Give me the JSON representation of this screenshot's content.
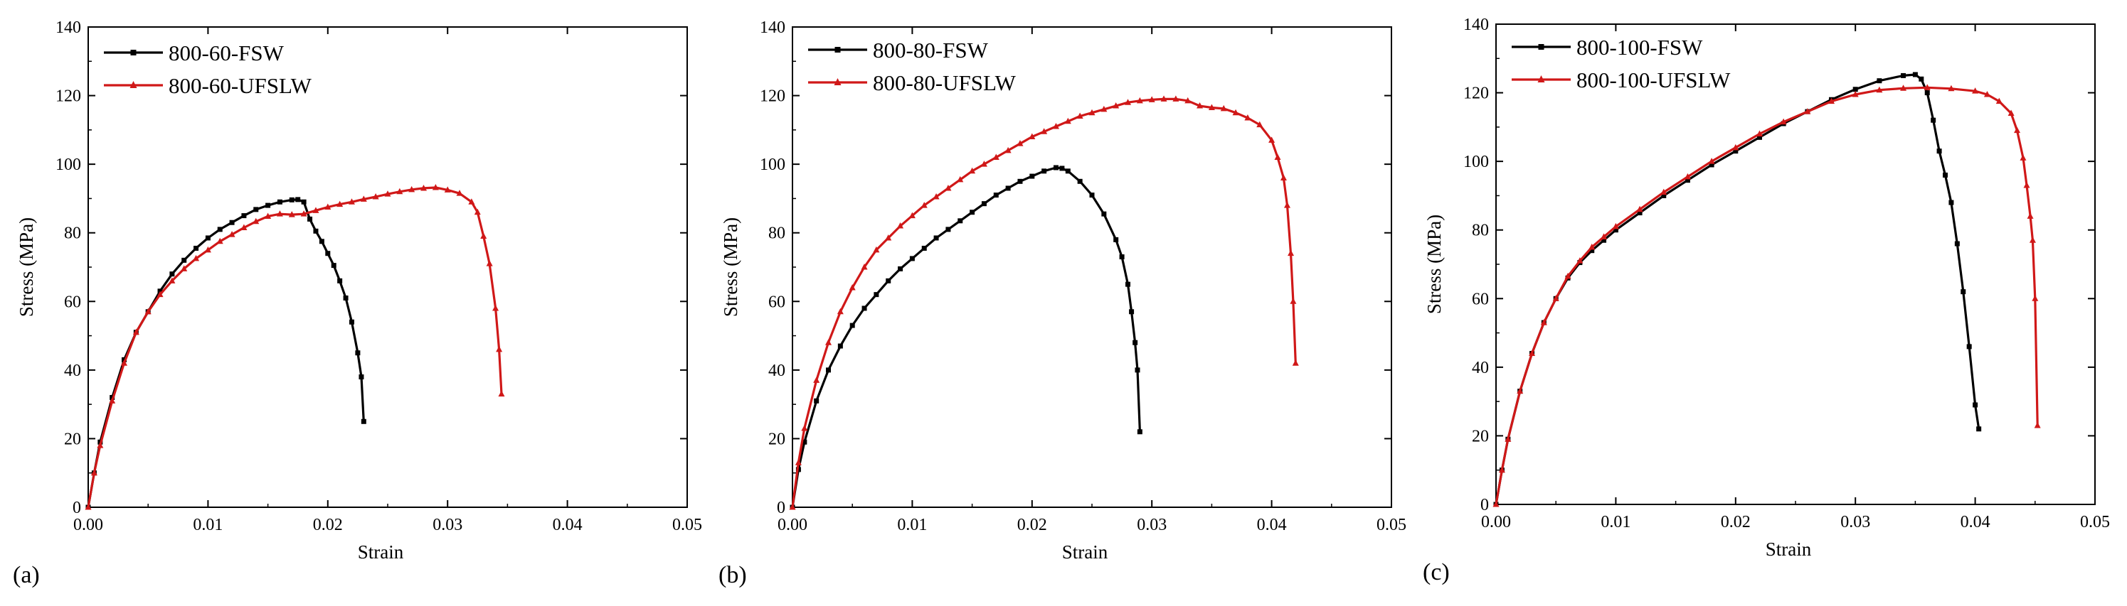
{
  "chart_data": [
    {
      "type": "line",
      "panel_label": "(a)",
      "xlabel": "Strain",
      "ylabel": "Stress (MPa)",
      "xlim": [
        0,
        0.05
      ],
      "ylim": [
        0,
        140
      ],
      "x_ticks": [
        "0.00",
        "0.01",
        "0.02",
        "0.03",
        "0.04",
        "0.05"
      ],
      "y_ticks": [
        "0",
        "20",
        "40",
        "60",
        "80",
        "100",
        "120",
        "140"
      ],
      "grid": false,
      "legend_position": "top-left",
      "series": [
        {
          "name": "800-60-FSW",
          "color": "#000000",
          "x": [
            0,
            0.0005,
            0.001,
            0.002,
            0.003,
            0.004,
            0.005,
            0.006,
            0.007,
            0.008,
            0.009,
            0.01,
            0.011,
            0.012,
            0.013,
            0.014,
            0.015,
            0.016,
            0.017,
            0.0175,
            0.018,
            0.0185,
            0.019,
            0.0195,
            0.02,
            0.0205,
            0.021,
            0.0215,
            0.022,
            0.0225,
            0.0228,
            0.023
          ],
          "y": [
            0,
            10,
            19,
            32,
            43,
            51,
            57,
            63,
            68,
            72,
            75.5,
            78.5,
            81,
            83,
            85,
            86.8,
            88,
            89,
            89.6,
            89.7,
            89,
            84,
            80.5,
            77.5,
            74,
            70.5,
            66,
            61,
            54,
            45,
            38,
            25
          ]
        },
        {
          "name": "800-60-UFSLW",
          "color": "#d01818",
          "x": [
            0,
            0.0005,
            0.001,
            0.002,
            0.003,
            0.004,
            0.005,
            0.006,
            0.007,
            0.008,
            0.009,
            0.01,
            0.011,
            0.012,
            0.013,
            0.014,
            0.015,
            0.016,
            0.017,
            0.018,
            0.019,
            0.02,
            0.021,
            0.022,
            0.023,
            0.024,
            0.025,
            0.026,
            0.027,
            0.028,
            0.029,
            0.03,
            0.031,
            0.032,
            0.0325,
            0.033,
            0.0335,
            0.034,
            0.0343,
            0.0345
          ],
          "y": [
            0,
            10,
            18,
            31,
            42,
            51,
            57,
            62,
            66,
            69.5,
            72.5,
            75,
            77.5,
            79.5,
            81.5,
            83.3,
            84.8,
            85.5,
            85.3,
            85.5,
            86.5,
            87.5,
            88.3,
            89,
            89.8,
            90.5,
            91.3,
            92,
            92.6,
            93,
            93.2,
            92.5,
            91.5,
            89,
            86,
            79,
            71,
            58,
            46,
            33
          ]
        }
      ]
    },
    {
      "type": "line",
      "panel_label": "(b)",
      "xlabel": "Strain",
      "ylabel": "Stress (MPa)",
      "xlim": [
        0,
        0.05
      ],
      "ylim": [
        0,
        140
      ],
      "x_ticks": [
        "0.00",
        "0.01",
        "0.02",
        "0.03",
        "0.04",
        "0.05"
      ],
      "y_ticks": [
        "0",
        "20",
        "40",
        "60",
        "80",
        "100",
        "120",
        "140"
      ],
      "grid": false,
      "legend_position": "top-left",
      "series": [
        {
          "name": "800-80-FSW",
          "color": "#000000",
          "x": [
            0,
            0.0005,
            0.001,
            0.002,
            0.003,
            0.004,
            0.005,
            0.006,
            0.007,
            0.008,
            0.009,
            0.01,
            0.011,
            0.012,
            0.013,
            0.014,
            0.015,
            0.016,
            0.017,
            0.018,
            0.019,
            0.02,
            0.021,
            0.022,
            0.0225,
            0.023,
            0.024,
            0.025,
            0.026,
            0.027,
            0.0275,
            0.028,
            0.0283,
            0.0286,
            0.0288,
            0.029
          ],
          "y": [
            0,
            11,
            19,
            31,
            40,
            47,
            53,
            58,
            62,
            66,
            69.5,
            72.5,
            75.5,
            78.5,
            81,
            83.5,
            86,
            88.5,
            91,
            93,
            95,
            96.5,
            98,
            99,
            98.8,
            98,
            95,
            91,
            85.5,
            78,
            73,
            65,
            57,
            48,
            40,
            22
          ]
        },
        {
          "name": "800-80-UFSLW",
          "color": "#d01818",
          "x": [
            0,
            0.0005,
            0.001,
            0.002,
            0.003,
            0.004,
            0.005,
            0.006,
            0.007,
            0.008,
            0.009,
            0.01,
            0.011,
            0.012,
            0.013,
            0.014,
            0.015,
            0.016,
            0.017,
            0.018,
            0.019,
            0.02,
            0.021,
            0.022,
            0.023,
            0.024,
            0.025,
            0.026,
            0.027,
            0.028,
            0.029,
            0.03,
            0.031,
            0.032,
            0.033,
            0.034,
            0.035,
            0.036,
            0.037,
            0.038,
            0.039,
            0.04,
            0.0405,
            0.041,
            0.0413,
            0.0416,
            0.0418,
            0.042
          ],
          "y": [
            0,
            13,
            23,
            37,
            48,
            57,
            64,
            70,
            75,
            78.5,
            82,
            85,
            88,
            90.5,
            93,
            95.5,
            98,
            100,
            102,
            104,
            106,
            108,
            109.5,
            111,
            112.5,
            114,
            115,
            116,
            117,
            118,
            118.5,
            118.8,
            119,
            119,
            118.5,
            117,
            116.5,
            116.2,
            115,
            113.5,
            111.5,
            107,
            102,
            96,
            88,
            74,
            60,
            42
          ]
        }
      ]
    },
    {
      "type": "line",
      "panel_label": "(c)",
      "xlabel": "Strain",
      "ylabel": "Stress (MPa)",
      "xlim": [
        0,
        0.05
      ],
      "ylim": [
        0,
        140
      ],
      "x_ticks": [
        "0.00",
        "0.01",
        "0.02",
        "0.03",
        "0.04",
        "0.05"
      ],
      "y_ticks": [
        "0",
        "20",
        "40",
        "60",
        "80",
        "100",
        "120",
        "140"
      ],
      "grid": false,
      "legend_position": "top-left",
      "series": [
        {
          "name": "800-100-FSW",
          "color": "#000000",
          "x": [
            0,
            0.0005,
            0.001,
            0.002,
            0.003,
            0.004,
            0.005,
            0.006,
            0.007,
            0.008,
            0.009,
            0.01,
            0.012,
            0.014,
            0.016,
            0.018,
            0.02,
            0.022,
            0.024,
            0.026,
            0.028,
            0.03,
            0.032,
            0.034,
            0.035,
            0.0355,
            0.036,
            0.0365,
            0.037,
            0.0375,
            0.038,
            0.0385,
            0.039,
            0.0395,
            0.04,
            0.0403
          ],
          "y": [
            0,
            10,
            19,
            33,
            44,
            53,
            60,
            66,
            70.5,
            74,
            77,
            80,
            85,
            90,
            94.5,
            99,
            103,
            107,
            111,
            114.5,
            118,
            121,
            123.5,
            125,
            125.3,
            124,
            120,
            112,
            103,
            96,
            88,
            76,
            62,
            46,
            29,
            22
          ]
        },
        {
          "name": "800-100-UFSLW",
          "color": "#d01818",
          "x": [
            0,
            0.0005,
            0.001,
            0.002,
            0.003,
            0.004,
            0.005,
            0.006,
            0.007,
            0.008,
            0.009,
            0.01,
            0.012,
            0.014,
            0.016,
            0.018,
            0.02,
            0.022,
            0.024,
            0.026,
            0.028,
            0.03,
            0.032,
            0.034,
            0.036,
            0.038,
            0.04,
            0.041,
            0.042,
            0.043,
            0.0435,
            0.044,
            0.0443,
            0.0446,
            0.0448,
            0.045,
            0.0452
          ],
          "y": [
            0,
            10,
            19,
            33,
            44,
            53,
            60,
            66.5,
            71,
            75,
            78,
            81,
            86,
            91,
            95.5,
            100,
            104,
            108,
            111.5,
            114.5,
            117.5,
            119.5,
            120.8,
            121.3,
            121.5,
            121.2,
            120.5,
            119.5,
            117.5,
            114,
            109,
            101,
            93,
            84,
            77,
            60,
            23
          ]
        }
      ]
    }
  ]
}
